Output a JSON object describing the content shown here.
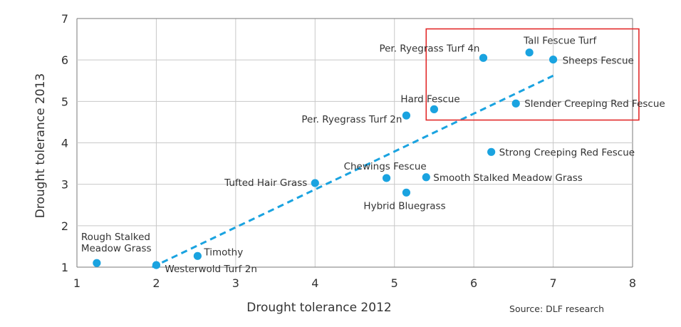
{
  "chart_data": {
    "type": "scatter",
    "xlabel": "Drought tolerance 2012",
    "ylabel": "Drought tolerance 2013",
    "xlim": [
      1,
      8
    ],
    "ylim": [
      1,
      7
    ],
    "xticks": [
      "1",
      "2",
      "3",
      "4",
      "5",
      "6",
      "7",
      "8"
    ],
    "yticks": [
      "1",
      "2",
      "3",
      "4",
      "5",
      "6",
      "7"
    ],
    "grid": true,
    "source": "Source: DLF research",
    "points": [
      {
        "label": [
          "Rough Stalked",
          "Meadow Grass"
        ],
        "x": 1.25,
        "y": 1.1
      },
      {
        "label": [
          "Westerwold Turf 2n"
        ],
        "x": 2.0,
        "y": 1.05
      },
      {
        "label": [
          "Timothy"
        ],
        "x": 2.52,
        "y": 1.27
      },
      {
        "label": [
          "Tufted Hair Grass"
        ],
        "x": 4.0,
        "y": 3.03
      },
      {
        "label": [
          "Chewings Fescue"
        ],
        "x": 4.9,
        "y": 3.15
      },
      {
        "label": [
          "Smooth Stalked Meadow Grass"
        ],
        "x": 5.4,
        "y": 3.17
      },
      {
        "label": [
          "Hybrid Bluegrass"
        ],
        "x": 5.15,
        "y": 2.8
      },
      {
        "label": [
          "Per. Ryegrass Turf 2n"
        ],
        "x": 5.15,
        "y": 4.66
      },
      {
        "label": [
          "Hard Fescue"
        ],
        "x": 5.5,
        "y": 4.81
      },
      {
        "label": [
          "Strong Creeping Red Fescue"
        ],
        "x": 6.22,
        "y": 3.78
      },
      {
        "label": [
          "Slender Creeping Red Fescue"
        ],
        "x": 6.53,
        "y": 4.95
      },
      {
        "label": [
          "Per. Ryegrass Turf 4n"
        ],
        "x": 6.12,
        "y": 6.05
      },
      {
        "label": [
          "Tall Fescue Turf"
        ],
        "x": 6.7,
        "y": 6.18
      },
      {
        "label": [
          "Sheeps Fescue"
        ],
        "x": 7.0,
        "y": 6.01
      }
    ],
    "trendline": {
      "x0": 1.95,
      "y0": 1.0,
      "x1": 7.0,
      "y1": 5.62
    },
    "highlight_box": {
      "x0": 5.4,
      "y0": 4.55,
      "x1": 8.08,
      "y1": 6.75
    },
    "colors": {
      "point": "#1aa3e0",
      "trendline": "#1aa3e0",
      "highlight": "#e22a2a",
      "grid": "#c8c8c8",
      "axis": "#7a7a7a"
    }
  }
}
